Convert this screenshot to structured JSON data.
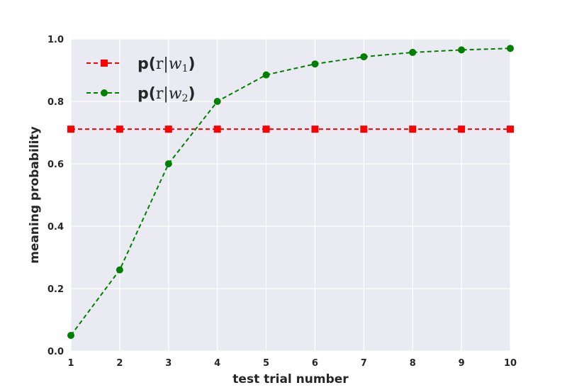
{
  "chart_data": {
    "type": "line",
    "x": [
      1,
      2,
      3,
      4,
      5,
      6,
      7,
      8,
      9,
      10
    ],
    "xlabel": "test trial number",
    "ylabel": "meaning probability",
    "xlim": [
      1,
      10
    ],
    "ylim": [
      0.0,
      1.0
    ],
    "xticks": [
      "1",
      "2",
      "3",
      "4",
      "5",
      "6",
      "7",
      "8",
      "9",
      "10"
    ],
    "yticks": [
      "0.0",
      "0.2",
      "0.4",
      "0.6",
      "0.8",
      "1.0"
    ],
    "grid": true,
    "legend_position": "top-left",
    "series": [
      {
        "label": {
          "pre": "p(",
          "r": "r",
          "bar": "|",
          "w": "w",
          "sub": "1",
          "post": ")"
        },
        "color": "#ff0000",
        "marker": "square",
        "linestyle": "dashed",
        "values": [
          0.711,
          0.711,
          0.711,
          0.711,
          0.711,
          0.711,
          0.711,
          0.711,
          0.711,
          0.711
        ]
      },
      {
        "label": {
          "pre": "p(",
          "r": "r",
          "bar": "|",
          "w": "w",
          "sub": "2",
          "post": ")"
        },
        "color": "#008000",
        "marker": "circle",
        "linestyle": "dashed",
        "values": [
          0.05,
          0.26,
          0.6,
          0.8,
          0.885,
          0.92,
          0.943,
          0.957,
          0.965,
          0.97
        ]
      }
    ]
  }
}
